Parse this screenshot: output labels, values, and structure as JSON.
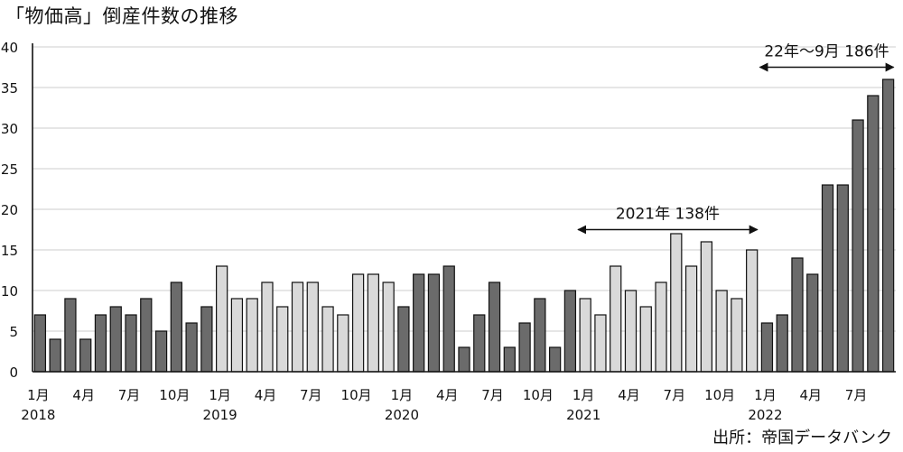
{
  "title": "「物価高」倒産件数の推移",
  "source": "出所：帝国データバンク",
  "chart_data": {
    "type": "bar",
    "title": "「物価高」倒産件数の推移",
    "xlabel": "",
    "ylabel": "",
    "ylim": [
      0,
      40
    ],
    "yticks": [
      "0",
      "5",
      "10",
      "15",
      "20",
      "25",
      "30",
      "35",
      "40"
    ],
    "grid": "horizontal",
    "colors": {
      "dark": "#6b6b6b",
      "light": "#d9d9d9",
      "gridline": "#d8d8d8"
    },
    "highlight_year": "2019, 2021",
    "categories": [
      "2018-01",
      "2018-02",
      "2018-03",
      "2018-04",
      "2018-05",
      "2018-06",
      "2018-07",
      "2018-08",
      "2018-09",
      "2018-10",
      "2018-11",
      "2018-12",
      "2019-01",
      "2019-02",
      "2019-03",
      "2019-04",
      "2019-05",
      "2019-06",
      "2019-07",
      "2019-08",
      "2019-09",
      "2019-10",
      "2019-11",
      "2019-12",
      "2020-01",
      "2020-02",
      "2020-03",
      "2020-04",
      "2020-05",
      "2020-06",
      "2020-07",
      "2020-08",
      "2020-09",
      "2020-10",
      "2020-11",
      "2020-12",
      "2021-01",
      "2021-02",
      "2021-03",
      "2021-04",
      "2021-05",
      "2021-06",
      "2021-07",
      "2021-08",
      "2021-09",
      "2021-10",
      "2021-11",
      "2021-12",
      "2022-01",
      "2022-02",
      "2022-03",
      "2022-04",
      "2022-05",
      "2022-06",
      "2022-07",
      "2022-08",
      "2022-09"
    ],
    "values": [
      7,
      4,
      9,
      4,
      7,
      8,
      7,
      9,
      5,
      11,
      6,
      8,
      13,
      9,
      9,
      11,
      8,
      11,
      11,
      8,
      7,
      12,
      12,
      11,
      8,
      12,
      12,
      13,
      3,
      7,
      11,
      3,
      6,
      9,
      3,
      10,
      9,
      7,
      13,
      10,
      8,
      11,
      17,
      13,
      16,
      10,
      9,
      15,
      6,
      7,
      14,
      12,
      23,
      23,
      31,
      34,
      36
    ],
    "shade": [
      "dark",
      "dark",
      "dark",
      "dark",
      "dark",
      "dark",
      "dark",
      "dark",
      "dark",
      "dark",
      "dark",
      "dark",
      "light",
      "light",
      "light",
      "light",
      "light",
      "light",
      "light",
      "light",
      "light",
      "light",
      "light",
      "light",
      "dark",
      "dark",
      "dark",
      "dark",
      "dark",
      "dark",
      "dark",
      "dark",
      "dark",
      "dark",
      "dark",
      "dark",
      "light",
      "light",
      "light",
      "light",
      "light",
      "light",
      "light",
      "light",
      "light",
      "light",
      "light",
      "light",
      "dark",
      "dark",
      "dark",
      "dark",
      "dark",
      "dark",
      "dark",
      "dark",
      "dark"
    ],
    "x_tick_labels": [
      {
        "index": 0,
        "month": "1月",
        "year": "2018"
      },
      {
        "index": 3,
        "month": "4月",
        "year": ""
      },
      {
        "index": 6,
        "month": "7月",
        "year": ""
      },
      {
        "index": 9,
        "month": "10月",
        "year": ""
      },
      {
        "index": 12,
        "month": "1月",
        "year": "2019"
      },
      {
        "index": 15,
        "month": "4月",
        "year": ""
      },
      {
        "index": 18,
        "month": "7月",
        "year": ""
      },
      {
        "index": 21,
        "month": "10月",
        "year": ""
      },
      {
        "index": 24,
        "month": "1月",
        "year": "2020"
      },
      {
        "index": 27,
        "month": "4月",
        "year": ""
      },
      {
        "index": 30,
        "month": "7月",
        "year": ""
      },
      {
        "index": 33,
        "month": "10月",
        "year": ""
      },
      {
        "index": 36,
        "month": "1月",
        "year": "2021"
      },
      {
        "index": 39,
        "month": "4月",
        "year": ""
      },
      {
        "index": 42,
        "month": "7月",
        "year": ""
      },
      {
        "index": 45,
        "month": "10月",
        "year": ""
      },
      {
        "index": 48,
        "month": "1月",
        "year": "2022"
      },
      {
        "index": 51,
        "month": "4月",
        "year": ""
      },
      {
        "index": 54,
        "month": "7月",
        "year": ""
      }
    ],
    "annotations": [
      {
        "text": "2021年  138件",
        "from_index": 36,
        "to_index": 47,
        "level": 17.5
      },
      {
        "text": "22年～9月  186件",
        "from_index": 48,
        "to_index": 56,
        "level": 37.5
      }
    ]
  }
}
